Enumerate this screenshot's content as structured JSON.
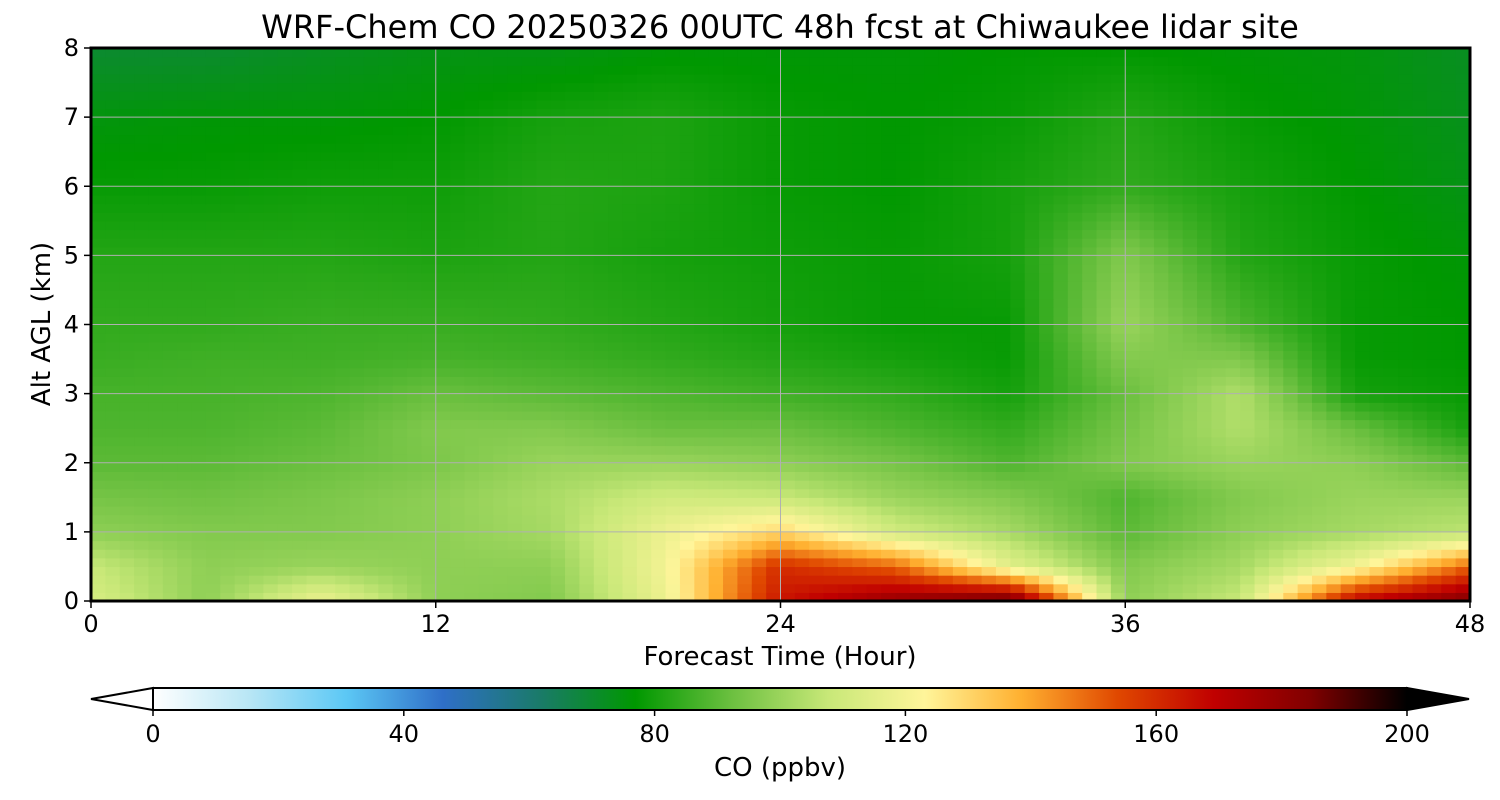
{
  "chart_data": {
    "type": "heatmap",
    "title": "WRF-Chem CO  20250326 00UTC 48h fcst at Chiwaukee lidar site",
    "xlabel": "Forecast Time (Hour)",
    "ylabel": "Alt AGL (km)",
    "xlim": [
      0,
      48
    ],
    "ylim": [
      0,
      8
    ],
    "xticks": [
      "0",
      "12",
      "24",
      "36",
      "48"
    ],
    "yticks": [
      "0",
      "1",
      "2",
      "3",
      "4",
      "5",
      "6",
      "7",
      "8"
    ],
    "grid": true,
    "colorbar": {
      "label": "CO  (ppbv)",
      "range": [
        0,
        200
      ],
      "ticks": [
        "0",
        "40",
        "80",
        "120",
        "160",
        "200"
      ],
      "extend": "both",
      "palette": [
        "#ffffff",
        "#b8e6f5",
        "#5cc8f5",
        "#2f6fc8",
        "#1a7a6a",
        "#009800",
        "#6cc040",
        "#c8e878",
        "#fff59a",
        "#ffb030",
        "#e04800",
        "#c00000",
        "#800000",
        "#000000"
      ]
    },
    "x_hours": [
      0,
      4,
      8,
      12,
      16,
      20,
      24,
      28,
      32,
      36,
      40,
      44,
      48
    ],
    "y_km": [
      0,
      0.5,
      1,
      1.5,
      2,
      2.5,
      3,
      3.5,
      4,
      5,
      6,
      7,
      8
    ],
    "values_ppbv": [
      [
        112,
        98,
        118,
        98,
        96,
        118,
        165,
        180,
        190,
        98,
        108,
        170,
        185
      ],
      [
        108,
        98,
        100,
        98,
        98,
        120,
        160,
        150,
        115,
        96,
        102,
        120,
        150
      ],
      [
        98,
        96,
        96,
        98,
        102,
        118,
        130,
        110,
        102,
        90,
        98,
        102,
        106
      ],
      [
        94,
        93,
        95,
        98,
        103,
        110,
        108,
        100,
        96,
        88,
        96,
        100,
        100
      ],
      [
        90,
        90,
        92,
        95,
        100,
        100,
        98,
        94,
        88,
        96,
        100,
        98,
        90
      ],
      [
        88,
        88,
        90,
        96,
        96,
        92,
        92,
        88,
        84,
        94,
        104,
        92,
        80
      ],
      [
        87,
        87,
        88,
        92,
        90,
        88,
        86,
        84,
        80,
        92,
        104,
        80,
        78
      ],
      [
        85,
        86,
        86,
        87,
        86,
        84,
        82,
        80,
        78,
        96,
        96,
        78,
        77
      ],
      [
        84,
        84,
        85,
        85,
        84,
        82,
        80,
        78,
        78,
        100,
        88,
        78,
        77
      ],
      [
        82,
        82,
        82,
        81,
        82,
        80,
        79,
        78,
        80,
        96,
        82,
        78,
        76
      ],
      [
        78,
        78,
        79,
        79,
        82,
        81,
        78,
        77,
        80,
        84,
        80,
        77,
        74
      ],
      [
        75,
        76,
        76,
        77,
        80,
        81,
        78,
        77,
        78,
        82,
        78,
        76,
        73
      ],
      [
        70,
        70,
        72,
        74,
        74,
        76,
        76,
        76,
        77,
        77,
        76,
        75,
        72
      ]
    ]
  }
}
